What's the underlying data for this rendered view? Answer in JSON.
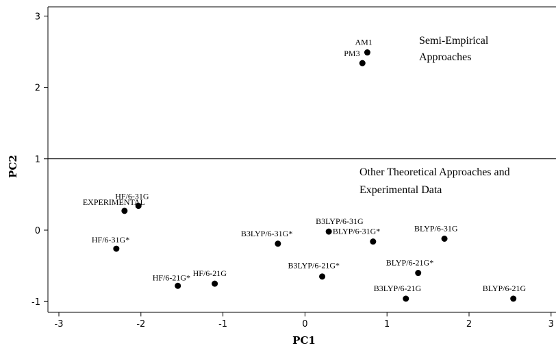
{
  "chart_data": {
    "type": "scatter",
    "xlabel": "PC1",
    "ylabel": "PC2",
    "xlim": [
      -3.1,
      3.05
    ],
    "ylim": [
      -1.15,
      3.05
    ],
    "x_ticks": [
      -3,
      -2,
      -1,
      0,
      1,
      2,
      3
    ],
    "y_ticks": [
      -1,
      0,
      1,
      2,
      3
    ],
    "x_tick_labels": [
      "-3",
      "-2",
      "-1",
      "0",
      "1",
      "2",
      "3"
    ],
    "y_tick_labels": [
      "-1",
      "0",
      "1",
      "2",
      "3"
    ],
    "grid": false,
    "reference_line_y": 1.0,
    "points": [
      {
        "label": "AM1",
        "x": 0.76,
        "y": 2.49
      },
      {
        "label": "PM3",
        "x": 0.7,
        "y": 2.34
      },
      {
        "label": "HF/6-31G",
        "x": -2.03,
        "y": 0.34
      },
      {
        "label": "EXPERIMENTAL",
        "x": -2.2,
        "y": 0.27
      },
      {
        "label": "HF/6-31G*",
        "x": -2.3,
        "y": -0.26
      },
      {
        "label": "HF/6-21G*",
        "x": -1.55,
        "y": -0.78
      },
      {
        "label": "HF/6-21G",
        "x": -1.1,
        "y": -0.75
      },
      {
        "label": "B3LYP/6-31G*",
        "x": -0.33,
        "y": -0.19
      },
      {
        "label": "B3LYP/6-31G",
        "x": 0.29,
        "y": -0.02
      },
      {
        "label": "BLYP/6-31G*",
        "x": 0.83,
        "y": -0.16
      },
      {
        "label": "BLYP/6-31G",
        "x": 1.7,
        "y": -0.12
      },
      {
        "label": "B3LYP/6-21G*",
        "x": 0.21,
        "y": -0.65
      },
      {
        "label": "BLYP/6-21G*",
        "x": 1.38,
        "y": -0.6
      },
      {
        "label": "B3LYP/6-21G",
        "x": 1.23,
        "y": -0.96
      },
      {
        "label": "BLYP/6-21G",
        "x": 2.54,
        "y": -0.96
      }
    ],
    "annotations": [
      {
        "lines": [
          "Semi-Empirical",
          "Approaches"
        ]
      },
      {
        "lines": [
          "Other Theoretical Approaches and",
          "Experimental Data"
        ]
      }
    ]
  }
}
